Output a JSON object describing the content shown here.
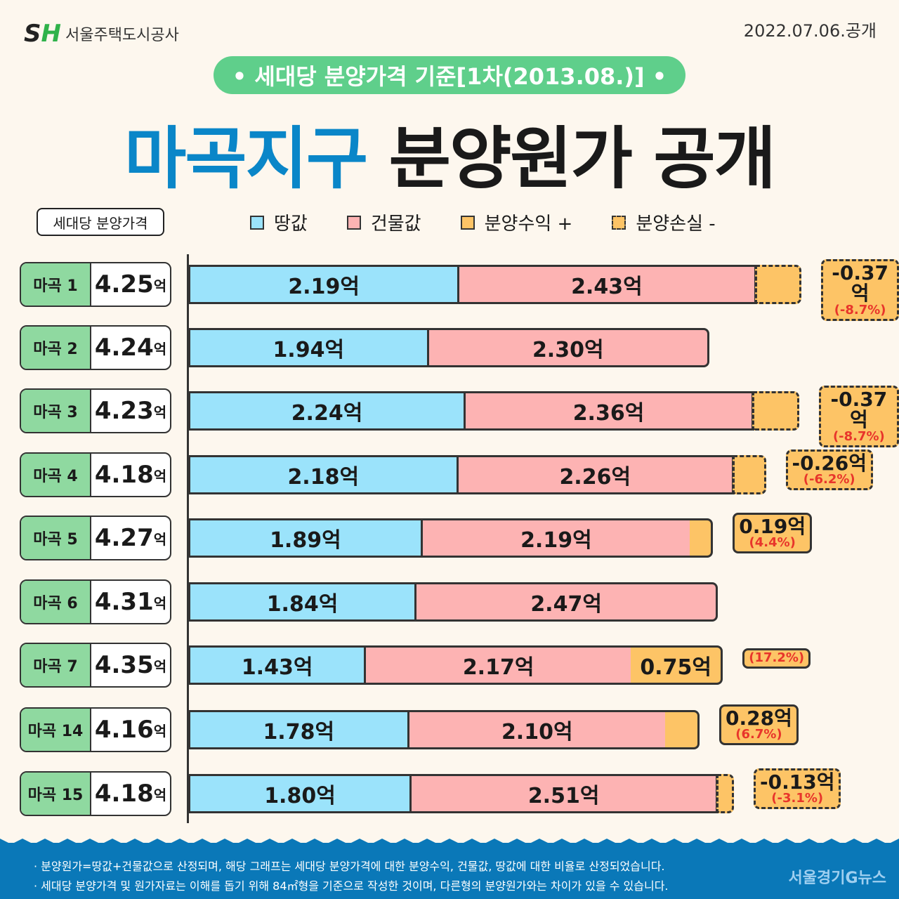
{
  "header": {
    "logo_mark": "SH",
    "logo_name": "서울주택도시공사",
    "date": "2022.07.06.공개",
    "pill": "• 세대당 분양가격 기준[1차(2013.08.)] •",
    "title_blue": "마곡지구",
    "title_black": "분양원가 공개",
    "tag": "세대당 분양가격"
  },
  "legend": [
    {
      "label": "땅값",
      "color": "#9be3fb"
    },
    {
      "label": "건물값",
      "color": "#fdb3b3"
    },
    {
      "label": "분양수익 +",
      "color": "#fdc466"
    },
    {
      "label": "분양손실 -",
      "color": "#fdc466",
      "dashed": true
    }
  ],
  "chart_data": {
    "type": "bar",
    "stacked": true,
    "orientation": "horizontal",
    "unit": "억",
    "categories": [
      "마곡 1",
      "마곡 2",
      "마곡 3",
      "마곡 4",
      "마곡 5",
      "마곡 6",
      "마곡 7",
      "마곡 14",
      "마곡 15"
    ],
    "price_labels": [
      "4.25",
      "4.24",
      "4.23",
      "4.18",
      "4.27",
      "4.31",
      "4.35",
      "4.16",
      "4.18"
    ],
    "series": [
      {
        "name": "땅값",
        "values": [
          2.19,
          1.94,
          2.24,
          2.18,
          1.89,
          1.84,
          1.43,
          1.78,
          1.8
        ],
        "labels": [
          "2.19억",
          "1.94억",
          "2.24억",
          "2.18억",
          "1.89억",
          "1.84억",
          "1.43억",
          "1.78억",
          "1.80억"
        ]
      },
      {
        "name": "건물값",
        "values": [
          2.43,
          2.3,
          2.36,
          2.26,
          2.19,
          2.47,
          2.17,
          2.1,
          2.51
        ],
        "labels": [
          "2.43억",
          "2.30억",
          "2.36억",
          "2.26억",
          "2.19억",
          "2.47억",
          "2.17억",
          "2.10억",
          "2.51억"
        ]
      },
      {
        "name": "분양수익/손실",
        "values": [
          -0.37,
          null,
          -0.37,
          -0.26,
          0.19,
          null,
          0.75,
          0.28,
          -0.13
        ],
        "labels": [
          "-0.37억",
          "",
          "-0.37억",
          "-0.26억",
          "0.19억",
          "",
          "0.75억",
          "0.28억",
          "-0.13억"
        ],
        "percent": [
          "(-8.7%)",
          "",
          "(-8.7%)",
          "(-6.2%)",
          "(4.4%)",
          "",
          "(17.2%)",
          "(6.7%)",
          "(-3.1%)"
        ]
      }
    ],
    "price_unit": "억",
    "colors": {
      "land": "#9be3fb",
      "building": "#fdb3b3",
      "profit": "#fdc466",
      "percent_text": "#e8352b"
    }
  },
  "footer": {
    "notes": [
      "· 분양원가=땅값+건물값으로 산정되며, 해당 그래프는 세대당 분양가격에 대한 분양수익, 건물값, 땅값에 대한 비율로 산정되었습니다.",
      "· 세대당 분양가격 및 원가자료는 이해를 돕기 위해 84㎡형을 기준으로 작성한 것이며, 다른형의 분양원가와는 차이가 있을 수 있습니다."
    ],
    "source": "서울경기G뉴스"
  }
}
